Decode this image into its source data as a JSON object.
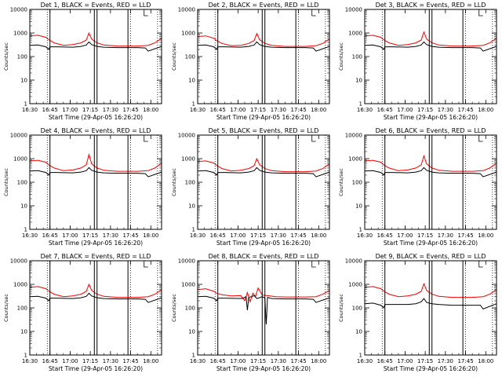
{
  "chart_data": {
    "type": "line",
    "ylabel": "Counts/sec",
    "xlabel": "Start Time (29-Apr-05 16:26:20)",
    "x_tick_labels": [
      "16:30",
      "16:45",
      "17:00",
      "17:15",
      "17:30",
      "17:45",
      "18:00"
    ],
    "y_tick_labels": [
      "1",
      "10",
      "100",
      "1000",
      "10000"
    ],
    "y_scale": "log",
    "ylim": [
      1,
      10000
    ],
    "xlim": [
      "16:30",
      "18:08"
    ],
    "grid": false,
    "colors": {
      "events": "#000000",
      "lld": "#ff0000"
    },
    "panels": [
      {
        "title": "Det 1, BLACK = Events, RED = LLD",
        "series": [
          {
            "color": "red",
            "x": [
              "16:30",
              "16:36",
              "16:42",
              "16:44",
              "16:48",
              "16:55",
              "17:02",
              "17:08",
              "17:12",
              "17:14",
              "17:16",
              "17:20",
              "17:25",
              "17:35",
              "17:43",
              "17:50",
              "17:58",
              "18:03",
              "18:08"
            ],
            "values": [
              750,
              800,
              650,
              520,
              380,
              300,
              320,
              380,
              500,
              1000,
              550,
              380,
              310,
              280,
              280,
              280,
              300,
              380,
              600
            ]
          },
          {
            "color": "black",
            "x": [
              "16:30",
              "16:36",
              "16:42",
              "16:44",
              "16:45",
              "16:50",
              "17:02",
              "17:08",
              "17:12",
              "17:14",
              "17:16",
              "17:20",
              "17:25",
              "17:35",
              "17:43",
              "17:50",
              "17:56",
              "17:58",
              "18:08"
            ],
            "values": [
              300,
              310,
              260,
              200,
              260,
              260,
              250,
              270,
              310,
              420,
              320,
              270,
              250,
              240,
              240,
              240,
              230,
              170,
              270
            ]
          }
        ]
      },
      {
        "title": "Det 2, BLACK = Events, RED = LLD",
        "series": [
          {
            "color": "red",
            "x": [
              "16:30",
              "16:36",
              "16:42",
              "16:44",
              "16:48",
              "16:55",
              "17:02",
              "17:08",
              "17:12",
              "17:14",
              "17:16",
              "17:20",
              "17:25",
              "17:35",
              "17:43",
              "17:50",
              "17:58",
              "18:03",
              "18:08"
            ],
            "values": [
              700,
              750,
              600,
              480,
              360,
              290,
              300,
              360,
              480,
              950,
              520,
              360,
              300,
              270,
              270,
              270,
              290,
              360,
              560
            ]
          },
          {
            "color": "black",
            "x": [
              "16:30",
              "16:36",
              "16:42",
              "16:44",
              "16:45",
              "16:50",
              "17:02",
              "17:08",
              "17:12",
              "17:14",
              "17:16",
              "17:20",
              "17:25",
              "17:35",
              "17:43",
              "17:50",
              "17:56",
              "17:58",
              "18:08"
            ],
            "values": [
              300,
              310,
              260,
              200,
              260,
              260,
              250,
              270,
              310,
              420,
              320,
              270,
              250,
              240,
              240,
              240,
              230,
              170,
              270
            ]
          }
        ]
      },
      {
        "title": "Det 3, BLACK = Events, RED = LLD",
        "series": [
          {
            "color": "red",
            "x": [
              "16:30",
              "16:36",
              "16:42",
              "16:44",
              "16:48",
              "16:55",
              "17:02",
              "17:08",
              "17:12",
              "17:14",
              "17:16",
              "17:20",
              "17:25",
              "17:35",
              "17:43",
              "17:50",
              "17:58",
              "18:03",
              "18:08"
            ],
            "values": [
              750,
              800,
              650,
              520,
              380,
              300,
              320,
              380,
              500,
              1100,
              550,
              380,
              310,
              280,
              280,
              280,
              300,
              380,
              600
            ]
          },
          {
            "color": "black",
            "x": [
              "16:30",
              "16:36",
              "16:42",
              "16:44",
              "16:45",
              "16:50",
              "17:02",
              "17:08",
              "17:12",
              "17:14",
              "17:16",
              "17:20",
              "17:25",
              "17:35",
              "17:43",
              "17:50",
              "17:56",
              "17:58",
              "18:08"
            ],
            "values": [
              300,
              310,
              260,
              200,
              260,
              260,
              250,
              270,
              310,
              420,
              320,
              270,
              250,
              240,
              240,
              240,
              230,
              170,
              270
            ]
          }
        ]
      },
      {
        "title": "Det 4, BLACK = Events, RED = LLD",
        "series": [
          {
            "color": "red",
            "x": [
              "16:30",
              "16:36",
              "16:42",
              "16:44",
              "16:48",
              "16:55",
              "17:02",
              "17:08",
              "17:12",
              "17:14",
              "17:16",
              "17:20",
              "17:25",
              "17:35",
              "17:43",
              "17:50",
              "17:58",
              "18:03",
              "18:08"
            ],
            "values": [
              800,
              850,
              700,
              550,
              400,
              310,
              330,
              400,
              550,
              1500,
              600,
              400,
              320,
              290,
              290,
              290,
              310,
              400,
              650
            ]
          },
          {
            "color": "black",
            "x": [
              "16:30",
              "16:36",
              "16:42",
              "16:44",
              "16:45",
              "16:50",
              "17:02",
              "17:08",
              "17:12",
              "17:14",
              "17:16",
              "17:20",
              "17:25",
              "17:35",
              "17:43",
              "17:50",
              "17:56",
              "17:58",
              "18:08"
            ],
            "values": [
              300,
              310,
              260,
              200,
              260,
              260,
              250,
              270,
              310,
              420,
              320,
              270,
              250,
              240,
              240,
              240,
              230,
              170,
              270
            ]
          }
        ]
      },
      {
        "title": "Det 5, BLACK = Events, RED = LLD",
        "series": [
          {
            "color": "red",
            "x": [
              "16:30",
              "16:36",
              "16:42",
              "16:44",
              "16:48",
              "16:55",
              "17:02",
              "17:08",
              "17:12",
              "17:14",
              "17:16",
              "17:20",
              "17:25",
              "17:35",
              "17:43",
              "17:50",
              "17:58",
              "18:03",
              "18:08"
            ],
            "values": [
              750,
              800,
              650,
              520,
              380,
              300,
              320,
              380,
              500,
              1000,
              550,
              380,
              310,
              280,
              280,
              280,
              300,
              380,
              600
            ]
          },
          {
            "color": "black",
            "x": [
              "16:30",
              "16:36",
              "16:42",
              "16:44",
              "16:45",
              "16:50",
              "17:02",
              "17:08",
              "17:12",
              "17:14",
              "17:16",
              "17:20",
              "17:25",
              "17:35",
              "17:43",
              "17:50",
              "17:56",
              "17:58",
              "18:08"
            ],
            "values": [
              300,
              310,
              260,
              200,
              260,
              260,
              250,
              270,
              310,
              420,
              320,
              270,
              250,
              240,
              240,
              240,
              230,
              170,
              270
            ]
          }
        ]
      },
      {
        "title": "Det 6, BLACK = Events, RED = LLD",
        "series": [
          {
            "color": "red",
            "x": [
              "16:30",
              "16:36",
              "16:42",
              "16:44",
              "16:48",
              "16:55",
              "17:02",
              "17:08",
              "17:12",
              "17:14",
              "17:16",
              "17:20",
              "17:25",
              "17:35",
              "17:43",
              "17:50",
              "17:58",
              "18:03",
              "18:08"
            ],
            "values": [
              800,
              850,
              700,
              550,
              400,
              310,
              330,
              400,
              550,
              1300,
              600,
              400,
              320,
              290,
              290,
              290,
              310,
              400,
              650
            ]
          },
          {
            "color": "black",
            "x": [
              "16:30",
              "16:36",
              "16:42",
              "16:44",
              "16:45",
              "16:50",
              "17:02",
              "17:08",
              "17:12",
              "17:14",
              "17:16",
              "17:20",
              "17:25",
              "17:35",
              "17:43",
              "17:50",
              "17:56",
              "17:58",
              "18:08"
            ],
            "values": [
              300,
              310,
              260,
              200,
              260,
              260,
              250,
              270,
              310,
              420,
              320,
              270,
              250,
              240,
              240,
              240,
              230,
              170,
              270
            ]
          }
        ]
      },
      {
        "title": "Det 7, BLACK = Events, RED = LLD",
        "series": [
          {
            "color": "red",
            "x": [
              "16:30",
              "16:36",
              "16:42",
              "16:44",
              "16:48",
              "16:55",
              "17:02",
              "17:08",
              "17:12",
              "17:14",
              "17:16",
              "17:20",
              "17:25",
              "17:35",
              "17:43",
              "17:50",
              "17:58",
              "18:03",
              "18:08"
            ],
            "values": [
              750,
              800,
              650,
              520,
              380,
              300,
              320,
              380,
              500,
              1000,
              550,
              380,
              310,
              280,
              280,
              280,
              300,
              380,
              600
            ]
          },
          {
            "color": "black",
            "x": [
              "16:30",
              "16:36",
              "16:42",
              "16:44",
              "16:45",
              "16:50",
              "17:02",
              "17:08",
              "17:12",
              "17:14",
              "17:16",
              "17:20",
              "17:25",
              "17:35",
              "17:43",
              "17:50",
              "17:56",
              "17:58",
              "18:08"
            ],
            "values": [
              300,
              310,
              260,
              200,
              260,
              260,
              250,
              270,
              310,
              420,
              320,
              270,
              250,
              240,
              240,
              240,
              230,
              170,
              270
            ]
          }
        ]
      },
      {
        "title": "Det 8, BLACK = Events, RED = LLD",
        "series": [
          {
            "color": "red",
            "x": [
              "16:30",
              "16:36",
              "16:42",
              "16:44",
              "16:48",
              "16:55",
              "17:02",
              "17:05",
              "17:07",
              "17:09",
              "17:11",
              "17:13",
              "17:15",
              "17:18",
              "17:22",
              "17:28",
              "17:35",
              "17:43",
              "17:50",
              "17:58",
              "18:03",
              "18:08"
            ],
            "values": [
              600,
              650,
              500,
              420,
              360,
              320,
              330,
              200,
              450,
              180,
              420,
              300,
              700,
              350,
              330,
              300,
              290,
              290,
              290,
              300,
              380,
              550
            ]
          },
          {
            "color": "black",
            "x": [
              "16:30",
              "16:36",
              "16:42",
              "16:44",
              "16:45",
              "16:50",
              "17:02",
              "17:04",
              "17:06",
              "17:07",
              "17:08",
              "17:10",
              "17:12",
              "17:14",
              "17:16",
              "17:18",
              "17:20",
              "17:21",
              "17:22",
              "17:25",
              "17:35",
              "17:43",
              "17:50",
              "17:56",
              "17:58",
              "18:08"
            ],
            "values": [
              300,
              310,
              260,
              200,
              260,
              260,
              250,
              260,
              300,
              80,
              280,
              300,
              330,
              250,
              270,
              300,
              260,
              20,
              280,
              250,
              240,
              240,
              240,
              230,
              170,
              270
            ]
          }
        ]
      },
      {
        "title": "Det 9, BLACK = Events, RED = LLD",
        "series": [
          {
            "color": "red",
            "x": [
              "16:30",
              "16:36",
              "16:42",
              "16:44",
              "16:48",
              "16:55",
              "17:02",
              "17:08",
              "17:12",
              "17:14",
              "17:16",
              "17:20",
              "17:25",
              "17:35",
              "17:43",
              "17:50",
              "17:58",
              "18:03",
              "18:08"
            ],
            "values": [
              750,
              800,
              650,
              520,
              380,
              300,
              320,
              380,
              500,
              1050,
              550,
              380,
              310,
              280,
              280,
              280,
              300,
              380,
              600
            ]
          },
          {
            "color": "black",
            "x": [
              "16:30",
              "16:36",
              "16:42",
              "16:44",
              "16:45",
              "16:50",
              "17:02",
              "17:08",
              "17:12",
              "17:14",
              "17:16",
              "17:20",
              "17:25",
              "17:35",
              "17:43",
              "17:50",
              "17:56",
              "17:58",
              "18:08"
            ],
            "values": [
              150,
              160,
              130,
              100,
              140,
              140,
              140,
              150,
              180,
              250,
              170,
              150,
              140,
              130,
              130,
              130,
              130,
              90,
              150
            ]
          }
        ]
      }
    ],
    "vertical_markers": {
      "solid": [
        "16:45",
        "17:18",
        "17:20",
        "17:43"
      ],
      "dotted": [
        "16:43",
        "17:45",
        "18:05"
      ]
    }
  }
}
